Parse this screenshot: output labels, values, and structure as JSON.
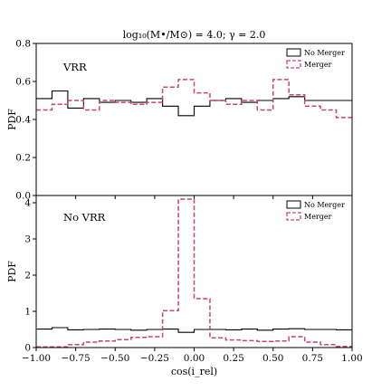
{
  "chart_data": {
    "type": "histogram",
    "title": "log₁₀(M•/M⊙) = 4.0; γ = 2.0",
    "xlabel": "cos(i_rel)",
    "xlim": [
      -1.0,
      1.0
    ],
    "xticks": [
      "−1.00",
      "−0.75",
      "−0.50",
      "−0.25",
      "0.00",
      "0.25",
      "0.50",
      "0.75",
      "1.00"
    ],
    "bin_edges": [
      -1.0,
      -0.9,
      -0.8,
      -0.7,
      -0.6,
      -0.5,
      -0.4,
      -0.3,
      -0.2,
      -0.1,
      0.0,
      0.1,
      0.2,
      0.3,
      0.4,
      0.5,
      0.6,
      0.7,
      0.8,
      0.9,
      1.0
    ],
    "panels": [
      {
        "annotation": "VRR",
        "ylabel": "PDF",
        "ylim": [
          0.0,
          0.8
        ],
        "yticks": [
          "0.0",
          "0.2",
          "0.4",
          "0.6",
          "0.8"
        ],
        "legend_position": "top-right",
        "series": [
          {
            "name": "No Merger",
            "style": "solid",
            "color": "#000000",
            "values": [
              0.51,
              0.55,
              0.46,
              0.51,
              0.49,
              0.5,
              0.49,
              0.51,
              0.47,
              0.42,
              0.47,
              0.5,
              0.51,
              0.49,
              0.5,
              0.51,
              0.52,
              0.5,
              0.5,
              0.5
            ]
          },
          {
            "name": "Merger",
            "style": "dashed",
            "color": "#cc4466",
            "values": [
              0.45,
              0.48,
              0.5,
              0.45,
              0.5,
              0.49,
              0.48,
              0.49,
              0.57,
              0.61,
              0.54,
              0.5,
              0.48,
              0.5,
              0.45,
              0.61,
              0.53,
              0.47,
              0.45,
              0.41
            ]
          }
        ]
      },
      {
        "annotation": "No VRR",
        "ylabel": "PDF",
        "ylim": [
          0.0,
          4.2
        ],
        "yticks": [
          "0",
          "1",
          "2",
          "3",
          "4"
        ],
        "legend_position": "top-right",
        "series": [
          {
            "name": "No Merger",
            "style": "solid",
            "color": "#000000",
            "values": [
              0.51,
              0.55,
              0.49,
              0.5,
              0.51,
              0.5,
              0.48,
              0.5,
              0.51,
              0.42,
              0.5,
              0.5,
              0.49,
              0.51,
              0.48,
              0.51,
              0.52,
              0.5,
              0.5,
              0.49
            ]
          },
          {
            "name": "Merger",
            "style": "dashed",
            "color": "#cc4466",
            "values": [
              0.02,
              0.02,
              0.08,
              0.15,
              0.18,
              0.22,
              0.28,
              0.3,
              1.02,
              4.1,
              1.35,
              0.27,
              0.21,
              0.19,
              0.17,
              0.18,
              0.3,
              0.15,
              0.08,
              0.03
            ]
          }
        ]
      }
    ]
  }
}
